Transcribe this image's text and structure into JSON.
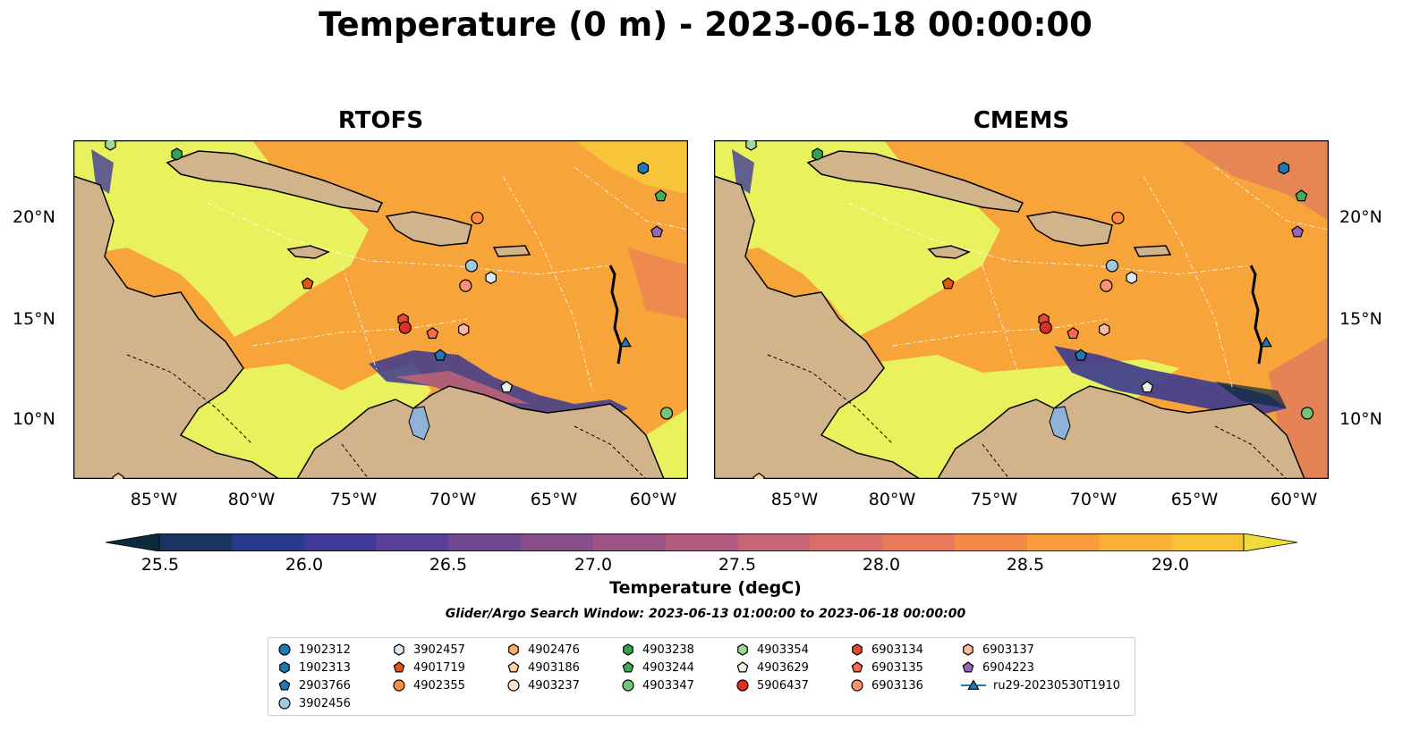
{
  "title": "Temperature (0 m) - 2023-06-18 00:00:00",
  "panels": [
    {
      "title": "RTOFS"
    },
    {
      "title": "CMEMS"
    }
  ],
  "axes": {
    "xticks": [
      "85°W",
      "80°W",
      "75°W",
      "70°W",
      "65°W",
      "60°W"
    ],
    "yticks": [
      "20°N",
      "15°N",
      "10°N"
    ],
    "lon_range": [
      -89.5,
      -58.0
    ],
    "lat_range": [
      7.0,
      24.0
    ]
  },
  "colorbar": {
    "label": "Temperature (degC)",
    "ticks": [
      "25.5",
      "26.0",
      "26.5",
      "27.0",
      "27.5",
      "28.0",
      "28.5",
      "29.0"
    ],
    "range": [
      25.25,
      29.25
    ],
    "colors": [
      "#0b2a3b",
      "#1a3460",
      "#273a8a",
      "#40399a",
      "#5a3f98",
      "#71498f",
      "#874f8a",
      "#9c5584",
      "#b15c7e",
      "#c56575",
      "#d96e6a",
      "#e87a5a",
      "#f38a48",
      "#f89b3c",
      "#faaf35",
      "#f7c333",
      "#efdc3a"
    ],
    "extend": "both"
  },
  "search_window": "Glider/Argo Search Window: 2023-06-13 01:00:00 to 2023-06-18 00:00:00",
  "colors": {
    "land": "#d2b48c",
    "warm_sea": "#f7a43a",
    "hot_sea": "#e9f25c",
    "cool_sea": "#3c3a8f",
    "lake": "#8fb2d8"
  },
  "legend": [
    {
      "label": "1902312",
      "marker": "circle",
      "color": "#1f77b4"
    },
    {
      "label": "1902313",
      "marker": "hexagon",
      "color": "#1f77b4"
    },
    {
      "label": "2903766",
      "marker": "pentagon",
      "color": "#1f77b4"
    },
    {
      "label": "3902456",
      "marker": "circle",
      "color": "#9ecae1"
    },
    {
      "label": "3902457",
      "marker": "hexagon",
      "color": "#deebf7"
    },
    {
      "label": "4901719",
      "marker": "pentagon",
      "color": "#e6550d"
    },
    {
      "label": "4902355",
      "marker": "circle",
      "color": "#fd8d3c"
    },
    {
      "label": "4902476",
      "marker": "hexagon",
      "color": "#fdae6b"
    },
    {
      "label": "4903186",
      "marker": "pentagon",
      "color": "#fdd0a2"
    },
    {
      "label": "4903237",
      "marker": "circle",
      "color": "#fee6ce"
    },
    {
      "label": "4903238",
      "marker": "hexagon",
      "color": "#31a354"
    },
    {
      "label": "4903244",
      "marker": "pentagon",
      "color": "#41ab5d"
    },
    {
      "label": "4903347",
      "marker": "circle",
      "color": "#74c476"
    },
    {
      "label": "4903354",
      "marker": "hexagon",
      "color": "#a1d99b"
    },
    {
      "label": "4903629",
      "marker": "pentagon",
      "color": "#e5f5e0"
    },
    {
      "label": "5906437",
      "marker": "circle",
      "color": "#de2d26"
    },
    {
      "label": "6903134",
      "marker": "hexagon",
      "color": "#e34a33"
    },
    {
      "label": "6903135",
      "marker": "pentagon",
      "color": "#fb6a4a"
    },
    {
      "label": "6903136",
      "marker": "circle",
      "color": "#fc9272"
    },
    {
      "label": "6903137",
      "marker": "hexagon",
      "color": "#fcbba1"
    },
    {
      "label": "6904223",
      "marker": "pentagon",
      "color": "#9467bd"
    },
    {
      "label": "ru29-20230530T1910",
      "marker": "triangle-line",
      "color": "#1f77b4"
    }
  ],
  "floats": [
    {
      "id": "1902313",
      "lon": -60.3,
      "lat": 22.6
    },
    {
      "id": "4903244",
      "lon": -59.4,
      "lat": 21.2
    },
    {
      "id": "6904223",
      "lon": -59.6,
      "lat": 19.4
    },
    {
      "id": "4902355",
      "lon": -68.8,
      "lat": 20.1
    },
    {
      "id": "3902456",
      "lon": -69.1,
      "lat": 17.7
    },
    {
      "id": "3902457",
      "lon": -68.1,
      "lat": 17.1
    },
    {
      "id": "6903136",
      "lon": -69.4,
      "lat": 16.7
    },
    {
      "id": "4901719",
      "lon": -77.5,
      "lat": 16.8
    },
    {
      "id": "6903134",
      "lon": -72.6,
      "lat": 15.0
    },
    {
      "id": "5906437",
      "lon": -72.5,
      "lat": 14.6
    },
    {
      "id": "6903135",
      "lon": -71.1,
      "lat": 14.3
    },
    {
      "id": "6903137",
      "lon": -69.5,
      "lat": 14.5
    },
    {
      "id": "2903766",
      "lon": -70.7,
      "lat": 13.2
    },
    {
      "id": "4903629",
      "lon": -67.3,
      "lat": 11.6
    },
    {
      "id": "4903347",
      "lon": -59.1,
      "lat": 10.3
    },
    {
      "id": "4903238",
      "lon": -84.2,
      "lat": 23.3
    },
    {
      "id": "4903354",
      "lon": -87.6,
      "lat": 23.8
    },
    {
      "id": "4903186",
      "lon": -87.2,
      "lat": 7.0
    },
    {
      "id": "ru29-20230530T1910",
      "lon": -61.2,
      "lat": 13.8
    }
  ]
}
